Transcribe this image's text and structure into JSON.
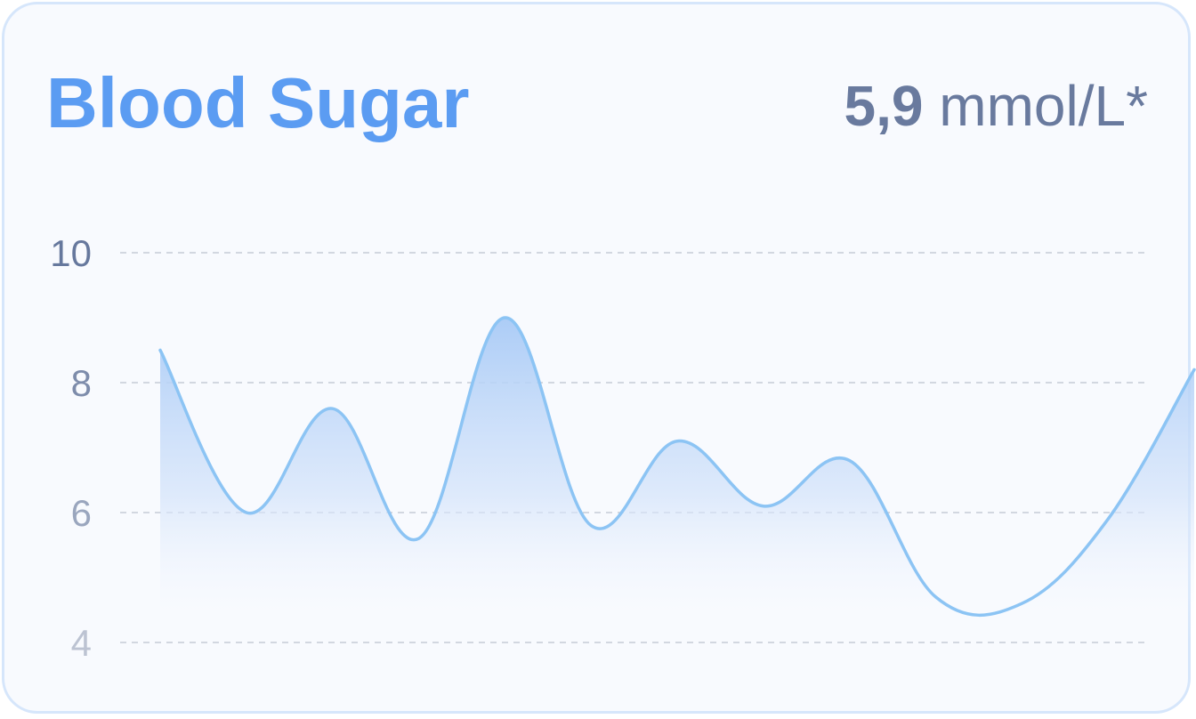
{
  "card": {
    "title": "Blood Sugar",
    "reading_value": "5,9",
    "reading_unit": "mmol/L*"
  },
  "colors": {
    "title": "#5b9cf2",
    "line": "#8cc4f4",
    "fill_top": "#a8caf6",
    "grid": "#c5cbd6",
    "text": "#697a9e"
  },
  "chart_data": {
    "type": "area",
    "title": "Blood Sugar",
    "xlabel": "",
    "ylabel": "",
    "ylim": [
      4,
      10
    ],
    "yticks": [
      "10",
      "8",
      "6",
      "4"
    ],
    "grid": true,
    "x": [
      0,
      1,
      2,
      3,
      4,
      5,
      6,
      7,
      8,
      9,
      10,
      11,
      12
    ],
    "values": [
      8.5,
      6.0,
      7.6,
      5.6,
      9.0,
      5.8,
      7.1,
      6.1,
      6.8,
      4.7,
      4.6,
      5.9,
      8.2
    ]
  }
}
